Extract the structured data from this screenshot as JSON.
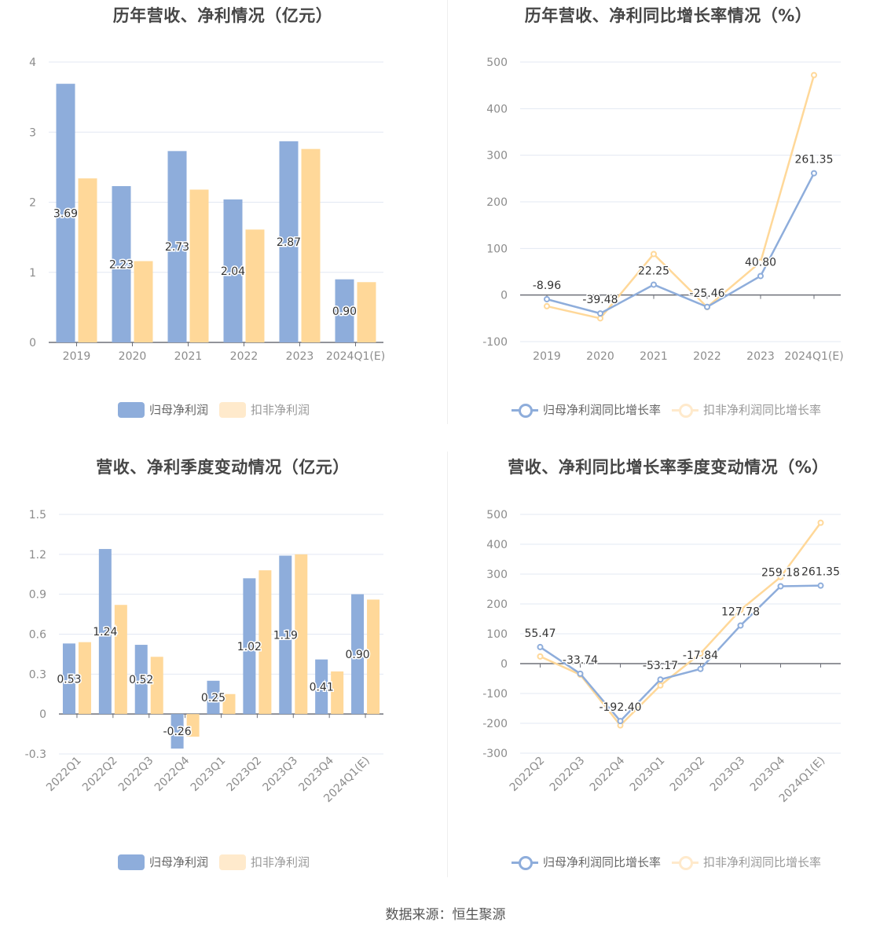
{
  "colors": {
    "blue": "#8eaddb",
    "orange": "#ffd899",
    "orange_legend_faded": "#ffeacc",
    "grid": "#e3e8f3",
    "axis": "#6e7079",
    "title": "#464646"
  },
  "footer": {
    "source": "数据来源：恒生聚源"
  },
  "chart_data": [
    {
      "id": "annual-profit",
      "type": "bar",
      "title": "历年营收、净利情况（亿元）",
      "xlabel": "",
      "ylabel": "",
      "categories": [
        "2019",
        "2020",
        "2021",
        "2022",
        "2023",
        "2024Q1(E)"
      ],
      "ylim": [
        0,
        4
      ],
      "yticks": [
        0,
        1,
        2,
        3,
        4
      ],
      "grid": true,
      "legend_position": "bottom",
      "series": [
        {
          "name": "归母净利润",
          "values": [
            3.69,
            2.23,
            2.73,
            2.04,
            2.87,
            0.9
          ],
          "labels": [
            "3.69",
            "2.23",
            "2.73",
            "2.04",
            "2.87",
            "0.90"
          ]
        },
        {
          "name": "扣非净利润",
          "values": [
            2.34,
            1.16,
            2.18,
            1.61,
            2.76,
            0.86
          ]
        }
      ]
    },
    {
      "id": "annual-growth",
      "type": "line",
      "title": "历年营收、净利同比增长率情况（%）",
      "xlabel": "",
      "ylabel": "",
      "categories": [
        "2019",
        "2020",
        "2021",
        "2022",
        "2023",
        "2024Q1(E)"
      ],
      "ylim": [
        -100,
        500
      ],
      "yticks": [
        -100,
        0,
        100,
        200,
        300,
        400,
        500
      ],
      "grid": true,
      "legend_position": "bottom",
      "series": [
        {
          "name": "归母净利润同比增长率",
          "values": [
            -8.96,
            -39.48,
            22.25,
            -25.46,
            40.8,
            261.35
          ],
          "labels": [
            "-8.96",
            "-39.48",
            "22.25",
            "-25.46",
            "40.80",
            "261.35"
          ]
        },
        {
          "name": "扣非净利润同比增长率",
          "values": [
            -24,
            -50,
            88,
            -26,
            71,
            472
          ]
        }
      ]
    },
    {
      "id": "quarterly-profit",
      "type": "bar",
      "title": "营收、净利季度变动情况（亿元）",
      "xlabel": "",
      "ylabel": "",
      "categories": [
        "2022Q1",
        "2022Q2",
        "2022Q3",
        "2022Q4",
        "2023Q1",
        "2023Q2",
        "2023Q3",
        "2023Q4",
        "2024Q1(E)"
      ],
      "ylim": [
        -0.3,
        1.5
      ],
      "yticks": [
        -0.3,
        0,
        0.3,
        0.6,
        0.9,
        1.2,
        1.5
      ],
      "ytick_labels": [
        "-0.3",
        "0",
        "0.3",
        "0.6",
        "0.9",
        "1.2",
        "1.5"
      ],
      "grid": true,
      "legend_position": "bottom",
      "series": [
        {
          "name": "归母净利润",
          "values": [
            0.53,
            1.24,
            0.52,
            -0.26,
            0.25,
            1.02,
            1.19,
            0.41,
            0.9
          ],
          "labels": [
            "0.53",
            "1.24",
            "0.52",
            "-0.26",
            "0.25",
            "1.02",
            "1.19",
            "0.41",
            "0.90"
          ]
        },
        {
          "name": "扣非净利润",
          "values": [
            0.54,
            0.82,
            0.43,
            -0.17,
            0.15,
            1.08,
            1.2,
            0.32,
            0.86
          ]
        }
      ]
    },
    {
      "id": "quarterly-growth",
      "type": "line",
      "title": "营收、净利同比增长率季度变动情况（%）",
      "xlabel": "",
      "ylabel": "",
      "categories": [
        "2022Q2",
        "2022Q3",
        "2022Q4",
        "2023Q1",
        "2023Q2",
        "2023Q3",
        "2023Q4",
        "2024Q1(E)"
      ],
      "ylim": [
        -300,
        500
      ],
      "yticks": [
        -300,
        -200,
        -100,
        0,
        100,
        200,
        300,
        400,
        500
      ],
      "grid": true,
      "legend_position": "bottom",
      "series": [
        {
          "name": "归母净利润同比增长率",
          "values": [
            55.47,
            -33.74,
            -192.4,
            -53.17,
            -17.84,
            127.78,
            259.18,
            261.35
          ],
          "labels": [
            "55.47",
            "-33.74",
            "-192.40",
            "-53.17",
            "-17.84",
            "127.78",
            "259.18",
            "261.35"
          ]
        },
        {
          "name": "扣非净利润同比增长率",
          "values": [
            24,
            -37,
            -207,
            -73,
            34,
            180,
            290,
            472
          ]
        }
      ]
    }
  ]
}
